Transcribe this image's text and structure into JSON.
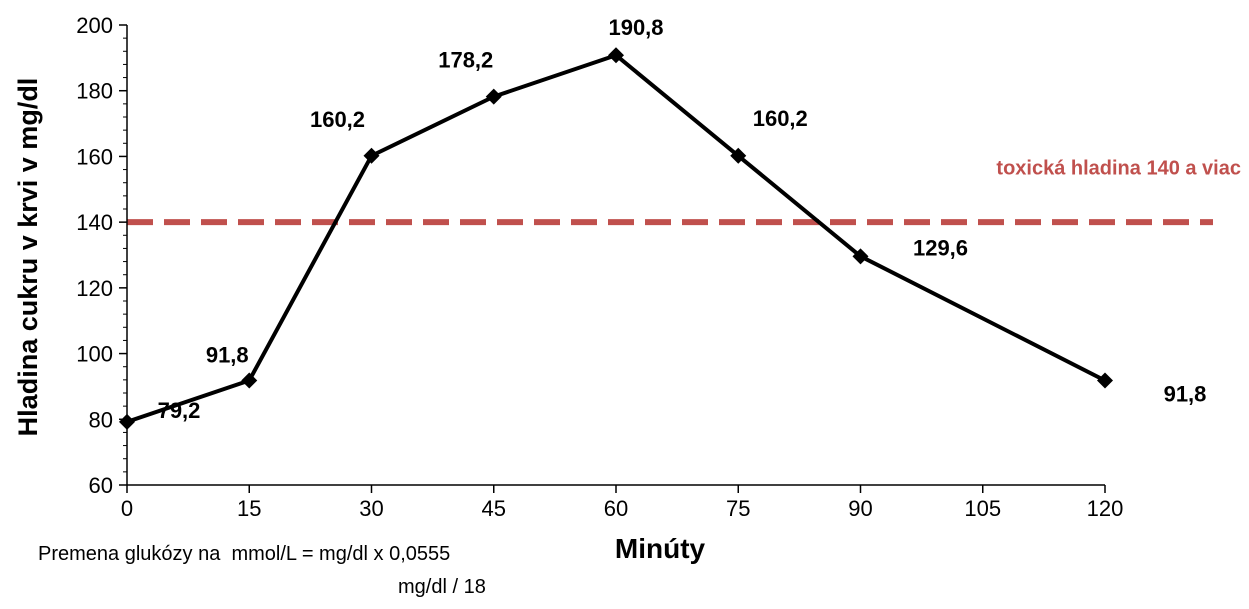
{
  "chart_data": {
    "type": "line",
    "title": "",
    "xlabel": "Minúty",
    "ylabel": "Hladina cukru v krvi v mg/dl",
    "x_ticks": [
      0,
      15,
      30,
      45,
      60,
      75,
      90,
      105,
      120
    ],
    "y_ticks": [
      60,
      80,
      100,
      120,
      140,
      160,
      180,
      200
    ],
    "xlim": [
      0,
      120
    ],
    "ylim": [
      60,
      200
    ],
    "grid": false,
    "series": [
      {
        "x": [
          0,
          15,
          30,
          45,
          60,
          75,
          90,
          120
        ],
        "y": [
          79.2,
          91.8,
          160.2,
          178.2,
          190.8,
          160.2,
          129.6,
          91.8
        ],
        "labels": [
          "79,2",
          "91,8",
          "160,2",
          "178,2",
          "190,8",
          "160,2",
          "129,6",
          "91,8"
        ],
        "color": "#000000",
        "marker": "diamond"
      }
    ],
    "threshold": {
      "value": 140,
      "label": "toxická hladina 140 a viac",
      "color": "#c0504d",
      "style": "dashed"
    }
  },
  "notes": {
    "line1": "Premena glukózy na  mmol/L = mg/dl x 0,0555",
    "line2": "mg/dl / 18"
  }
}
